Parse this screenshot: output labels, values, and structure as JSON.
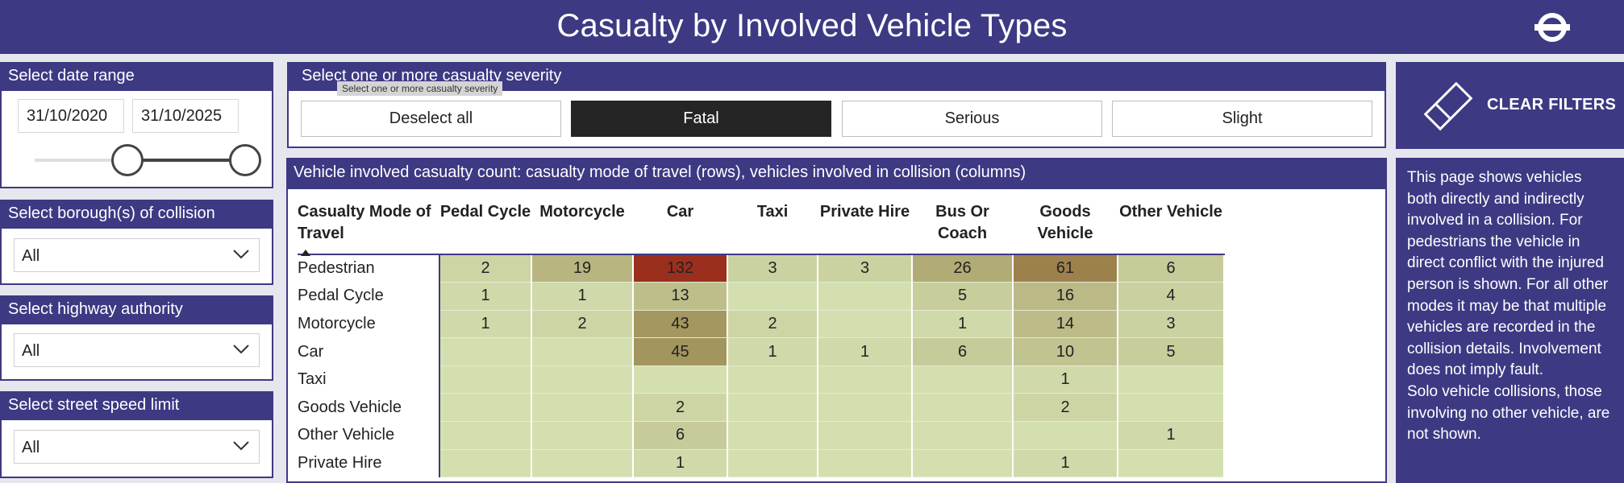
{
  "header": {
    "title": "Casualty by Involved Vehicle Types",
    "logo_icon": "roundel-icon"
  },
  "date_filter": {
    "label": "Select date range",
    "start": "31/10/2020",
    "end": "31/10/2025"
  },
  "borough_filter": {
    "label": "Select borough(s) of collision",
    "value": "All"
  },
  "highway_filter": {
    "label": "Select highway authority",
    "value": "All"
  },
  "speed_filter": {
    "label": "Select street speed limit",
    "value": "All"
  },
  "severity": {
    "label": "Select one or more casualty severity",
    "tooltip": "Select one or more casualty severity",
    "buttons": [
      "Deselect all",
      "Fatal",
      "Serious",
      "Slight"
    ],
    "selected": "Fatal"
  },
  "clear_filters": {
    "label": "CLEAR FILTERS",
    "icon": "eraser-icon"
  },
  "info_text": "This page shows vehicles both directly and indirectly involved in a collision.  For pedestrians the vehicle in direct conflict with the injured person is shown. For all other modes it may be that multiple vehicles are recorded in the collision details. Involvement does not imply fault.\nSolo vehicle collisions, those involving no other vehicle, are not shown.",
  "matrix": {
    "title": "Vehicle involved casualty count: casualty mode of travel (rows), vehicles involved in collision (columns)",
    "row_header": "Casualty Mode of Travel",
    "columns": [
      "Pedal Cycle",
      "Motorcycle",
      "Car",
      "Taxi",
      "Private Hire",
      "Bus Or Coach",
      "Goods Vehicle",
      "Other Vehicle"
    ],
    "rows": [
      {
        "label": "Pedestrian",
        "values": [
          "2",
          "19",
          "132",
          "3",
          "3",
          "26",
          "61",
          "6"
        ]
      },
      {
        "label": "Pedal Cycle",
        "values": [
          "1",
          "1",
          "13",
          "",
          "",
          "5",
          "16",
          "4"
        ]
      },
      {
        "label": "Motorcycle",
        "values": [
          "1",
          "2",
          "43",
          "2",
          "",
          "1",
          "14",
          "3"
        ]
      },
      {
        "label": "Car",
        "values": [
          "",
          "",
          "45",
          "1",
          "1",
          "6",
          "10",
          "5"
        ]
      },
      {
        "label": "Taxi",
        "values": [
          "",
          "",
          "",
          "",
          "",
          "",
          "1",
          ""
        ]
      },
      {
        "label": "Goods Vehicle",
        "values": [
          "",
          "",
          "2",
          "",
          "",
          "",
          "2",
          ""
        ]
      },
      {
        "label": "Other Vehicle",
        "values": [
          "",
          "",
          "6",
          "",
          "",
          "",
          "",
          "1"
        ]
      },
      {
        "label": "Private Hire",
        "values": [
          "",
          "",
          "1",
          "",
          "",
          "",
          "1",
          ""
        ]
      }
    ],
    "colors": {
      "low": "#d4dfb0",
      "mid": "#9d8d54",
      "high": "#9b2f1e"
    }
  }
}
